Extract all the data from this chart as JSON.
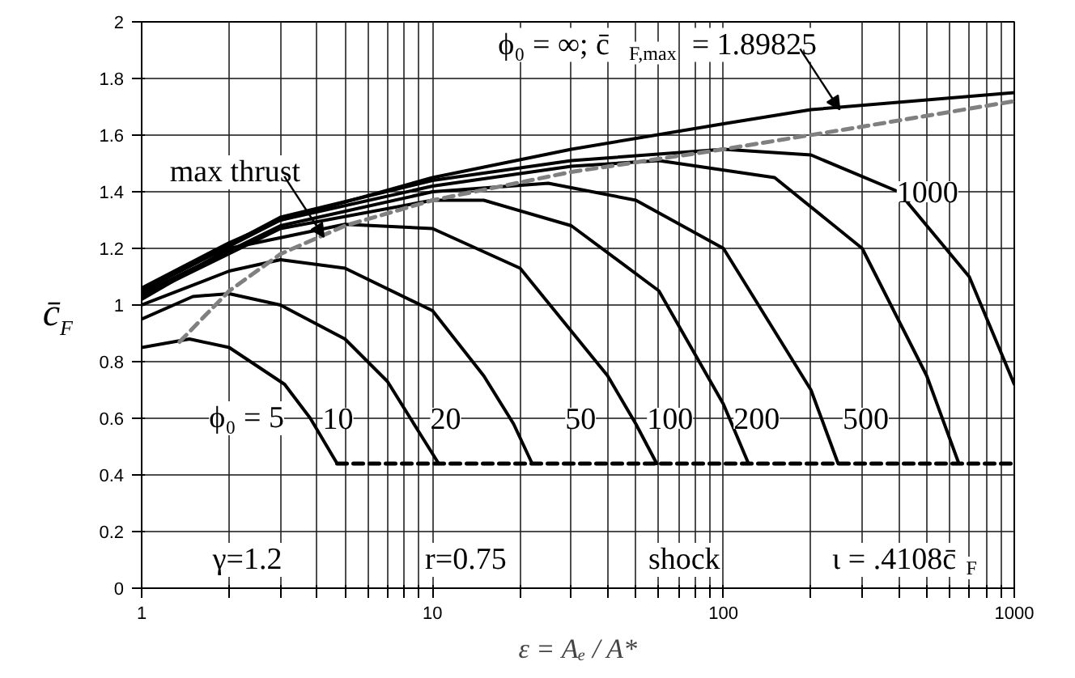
{
  "chart_data": {
    "type": "line",
    "xlabel": "ε = Aₑ / A*",
    "ylabel": "c̄$_{F}$",
    "log": "x",
    "grid": true,
    "marker": "none",
    "line_style": "solid",
    "xlim": [
      1,
      1000
    ],
    "ylim": [
      0,
      2
    ],
    "xticks": [
      1,
      {
        "value": 2,
        "label": null
      },
      {
        "value": 3,
        "label": null
      },
      {
        "value": 4,
        "label": null
      },
      {
        "value": 5,
        "label": null
      },
      {
        "value": 6,
        "label": null
      },
      {
        "value": 7,
        "label": null
      },
      {
        "value": 8,
        "label": null
      },
      {
        "value": 9,
        "label": null
      },
      10,
      {
        "value": 20,
        "label": null
      },
      {
        "value": 30,
        "label": null
      },
      {
        "value": 40,
        "label": null
      },
      {
        "value": 50,
        "label": null
      },
      {
        "value": 60,
        "label": null
      },
      {
        "value": 70,
        "label": null
      },
      {
        "value": 80,
        "label": null
      },
      {
        "value": 90,
        "label": null
      },
      100,
      {
        "value": 200,
        "label": null
      },
      {
        "value": 300,
        "label": null
      },
      {
        "value": 400,
        "label": null
      },
      {
        "value": 500,
        "label": null
      },
      {
        "value": 600,
        "label": null
      },
      {
        "value": 700,
        "label": null
      },
      {
        "value": 800,
        "label": null
      },
      {
        "value": 900,
        "label": null
      },
      1000
    ],
    "yticks": [
      0,
      0.2,
      0.4,
      0.6,
      0.8,
      1,
      1.2,
      1.4,
      1.6,
      1.8,
      2
    ],
    "series": [
      {
        "color": "#000000",
        "x": [
          1,
          1.46,
          2,
          3.1,
          3.8,
          4.7
        ],
        "values": [
          0.85,
          0.88,
          0.85,
          0.72,
          0.6,
          0.44
        ]
      },
      {
        "color": "#000000",
        "x": [
          1,
          1.5,
          2,
          3,
          5,
          7,
          9,
          10.5
        ],
        "values": [
          0.95,
          1.03,
          1.04,
          1.0,
          0.88,
          0.73,
          0.55,
          0.44
        ]
      },
      {
        "color": "#000000",
        "x": [
          1,
          2,
          3,
          5,
          10,
          15,
          19,
          22
        ],
        "values": [
          1.0,
          1.12,
          1.16,
          1.13,
          0.98,
          0.75,
          0.58,
          0.44
        ]
      },
      {
        "color": "#000000",
        "x": [
          1,
          2,
          5,
          10,
          20,
          40,
          50,
          59
        ],
        "values": [
          1.02,
          1.2,
          1.285,
          1.27,
          1.13,
          0.75,
          0.58,
          0.44
        ]
      },
      {
        "color": "#000000",
        "x": [
          1,
          3,
          10,
          15,
          30,
          60,
          100,
          122
        ],
        "values": [
          1.03,
          1.27,
          1.37,
          1.37,
          1.28,
          1.05,
          0.65,
          0.44
        ]
      },
      {
        "color": "#000000",
        "x": [
          1,
          3,
          10,
          25,
          50,
          100,
          200,
          248
        ],
        "values": [
          1.04,
          1.28,
          1.4,
          1.43,
          1.37,
          1.2,
          0.7,
          0.44
        ]
      },
      {
        "color": "#000000",
        "x": [
          1,
          3,
          10,
          30,
          60,
          150,
          300,
          500,
          645
        ],
        "values": [
          1.05,
          1.3,
          1.42,
          1.49,
          1.51,
          1.45,
          1.2,
          0.75,
          0.44
        ]
      },
      {
        "color": "#000000",
        "x": [
          1,
          3,
          10,
          30,
          100,
          200,
          400,
          700,
          1000
        ],
        "values": [
          1.05,
          1.31,
          1.44,
          1.51,
          1.55,
          1.53,
          1.4,
          1.1,
          0.72
        ]
      },
      {
        "color": "#000000",
        "x": [
          1,
          2,
          3,
          10,
          30,
          100,
          200,
          1000
        ],
        "values": [
          1.06,
          1.22,
          1.3,
          1.45,
          1.55,
          1.64,
          1.69,
          1.75
        ]
      },
      {
        "color": "#808080",
        "line_style": "dashed",
        "x": [
          1.35,
          2,
          3,
          5,
          10,
          30,
          100,
          300,
          1000
        ],
        "values": [
          0.87,
          1.05,
          1.18,
          1.28,
          1.37,
          1.47,
          1.55,
          1.63,
          1.72
        ]
      },
      {
        "color": "#000000",
        "line_style": "dashed",
        "x": [
          4.7,
          1000
        ],
        "values": [
          0.44,
          0.44
        ]
      }
    ],
    "annotations": [
      {
        "text": "ϕ₀ = ∞;  c̄$_{F,max}$ = 1.89825",
        "x": 251,
        "y": 1.69
      },
      {
        "text": "max thrust",
        "x": 4.23,
        "y": 1.24
      },
      {
        "text": "1000",
        "x": 513,
        "y": 1.4
      },
      {
        "text": "10",
        "x": 4.78,
        "y": 0.6
      },
      {
        "text": "20",
        "x": 11.2,
        "y": 0.6
      },
      {
        "text": "50",
        "x": 32.6,
        "y": 0.6
      },
      {
        "text": "100",
        "x": 66.5,
        "y": 0.6
      },
      {
        "text": "200",
        "x": 132,
        "y": 0.6
      },
      {
        "text": "500",
        "x": 313,
        "y": 0.6
      },
      "γ=1.2",
      "r=0.75",
      "shock",
      "ι = .4108c̄$_{F}$",
      "ϕ₀ = 5"
    ]
  }
}
